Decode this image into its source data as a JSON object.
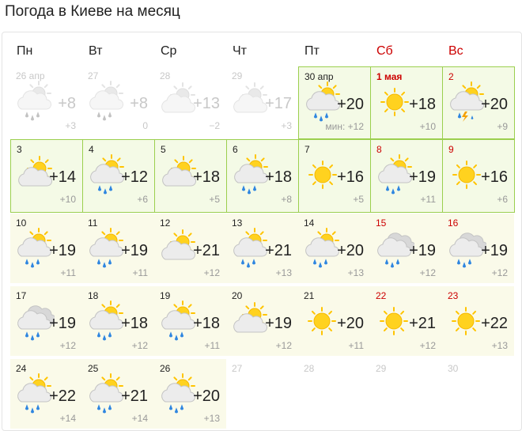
{
  "title": "Погода в Киеве на месяц",
  "weekdays": [
    "Пн",
    "Вт",
    "Ср",
    "Чт",
    "Пт",
    "Сб",
    "Вс"
  ],
  "weeks": [
    [
      {
        "date": "26 апр",
        "max": "+8",
        "min": "+3"
      },
      {
        "date": "27",
        "max": "+8",
        "min": "0"
      },
      {
        "date": "28",
        "max": "+13",
        "min": "−2"
      },
      {
        "date": "29",
        "max": "+17",
        "min": "+3"
      },
      {
        "date": "30 апр",
        "max": "+20",
        "min": "мин: +12"
      },
      {
        "date": "1 мая",
        "max": "+18",
        "min": "+10"
      },
      {
        "date": "2",
        "max": "+20",
        "min": "+9"
      }
    ],
    [
      {
        "date": "3",
        "max": "+14",
        "min": "+10"
      },
      {
        "date": "4",
        "max": "+12",
        "min": "+6"
      },
      {
        "date": "5",
        "max": "+18",
        "min": "+5"
      },
      {
        "date": "6",
        "max": "+18",
        "min": "+8"
      },
      {
        "date": "7",
        "max": "+16",
        "min": "+5"
      },
      {
        "date": "8",
        "max": "+19",
        "min": "+11"
      },
      {
        "date": "9",
        "max": "+16",
        "min": "+6"
      }
    ],
    [
      {
        "date": "10",
        "max": "+19",
        "min": "+11"
      },
      {
        "date": "11",
        "max": "+19",
        "min": "+11"
      },
      {
        "date": "12",
        "max": "+21",
        "min": "+12"
      },
      {
        "date": "13",
        "max": "+21",
        "min": "+13"
      },
      {
        "date": "14",
        "max": "+20",
        "min": "+13"
      },
      {
        "date": "15",
        "max": "+19",
        "min": "+12"
      },
      {
        "date": "16",
        "max": "+19",
        "min": "+12"
      }
    ],
    [
      {
        "date": "17",
        "max": "+19",
        "min": "+12"
      },
      {
        "date": "18",
        "max": "+18",
        "min": "+12"
      },
      {
        "date": "19",
        "max": "+18",
        "min": "+11"
      },
      {
        "date": "20",
        "max": "+19",
        "min": "+12"
      },
      {
        "date": "21",
        "max": "+20",
        "min": "+11"
      },
      {
        "date": "22",
        "max": "+21",
        "min": "+12"
      },
      {
        "date": "23",
        "max": "+22",
        "min": "+13"
      }
    ],
    [
      {
        "date": "24",
        "max": "+22",
        "min": "+14"
      },
      {
        "date": "25",
        "max": "+21",
        "min": "+14"
      },
      {
        "date": "26",
        "max": "+20",
        "min": "+13"
      },
      {
        "date": "27"
      },
      {
        "date": "28"
      },
      {
        "date": "29"
      },
      {
        "date": "30"
      }
    ]
  ]
}
